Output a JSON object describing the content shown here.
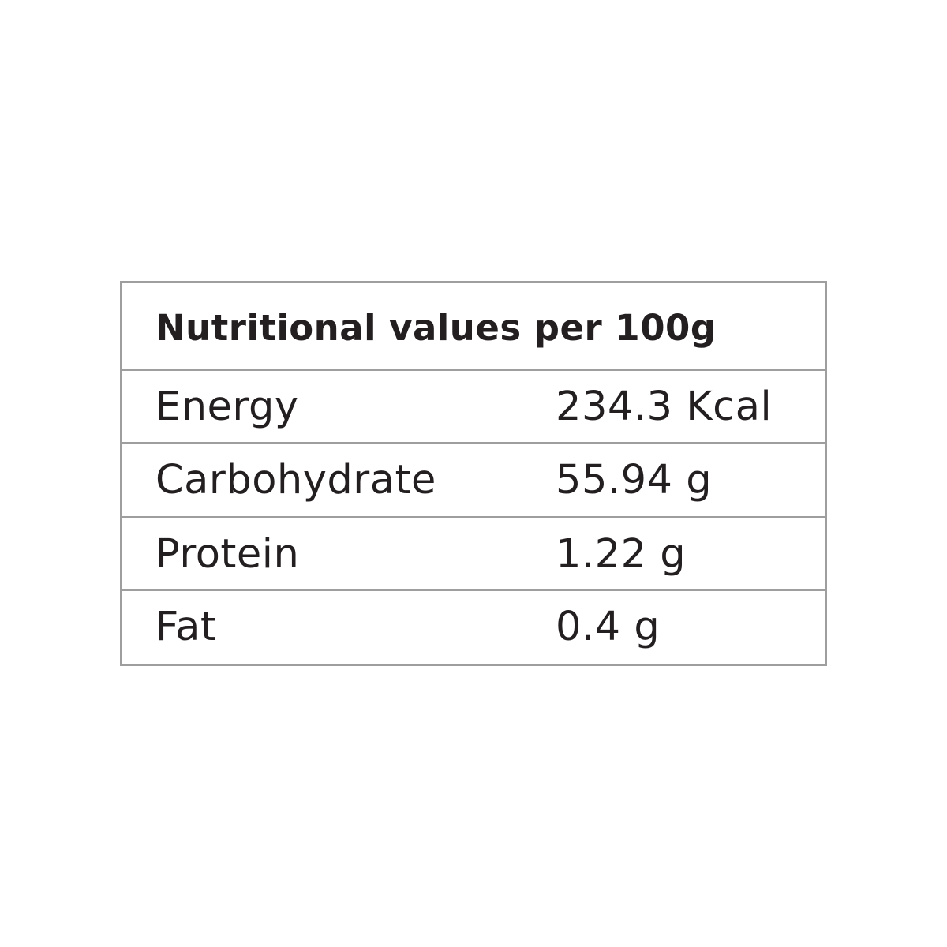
{
  "table": {
    "title": "Nutritional values per 100g",
    "rows": [
      {
        "label": "Energy",
        "value": "234.3 Kcal"
      },
      {
        "label": "Carbohydrate",
        "value": "55.94 g"
      },
      {
        "label": "Protein",
        "value": "1.22 g"
      },
      {
        "label": "Fat",
        "value": "0.4 g"
      }
    ]
  }
}
